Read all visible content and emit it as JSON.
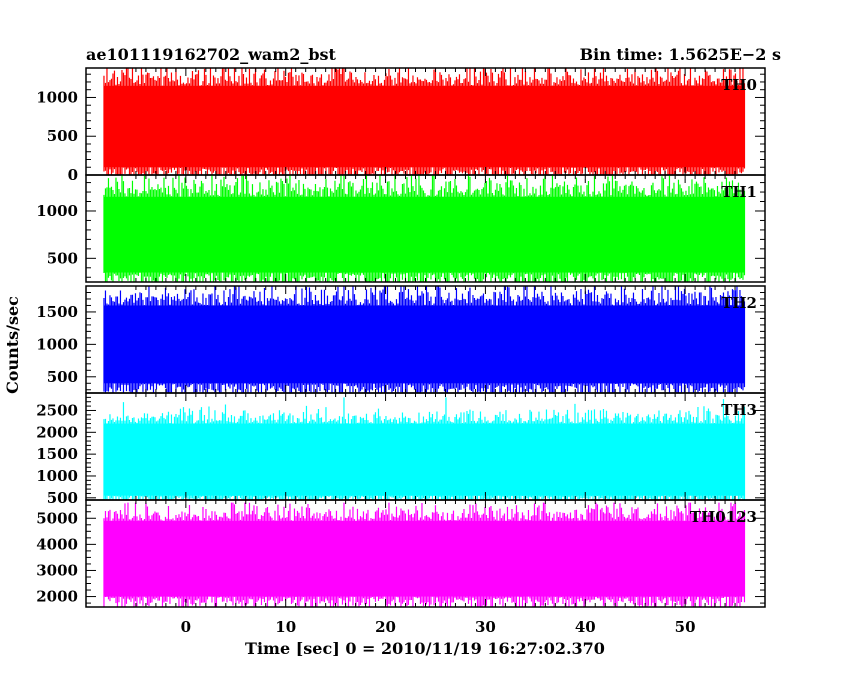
{
  "header": {
    "left_title": "ae101119162702_wam2_bst",
    "right_title": "Bin time: 1.5625E−2 s"
  },
  "axes": {
    "xlabel": "Time [sec] 0 = 2010/11/19 16:27:02.370",
    "ylabel": "Counts/sec"
  },
  "chart_data": {
    "type": "line",
    "title": "ae101119162702_wam2_bst",
    "subtitle": "Bin time: 1.5625E−2 s",
    "xlabel": "Time [sec] 0 = 2010/11/19 16:27:02.370",
    "ylabel": "Counts/sec",
    "xlim": [
      -10,
      58
    ],
    "x_ticks": [
      0,
      10,
      20,
      30,
      40,
      50
    ],
    "x_tick_labels": [
      "0",
      "10",
      "20",
      "30",
      "40",
      "50"
    ],
    "x_data_range": [
      -8.2,
      56.0
    ],
    "grid": false,
    "legend": "none",
    "panels": [
      {
        "name": "TH0",
        "color": "#ff0000",
        "ylim": [
          0,
          1380
        ],
        "y_ticks": [
          0,
          500,
          1000
        ],
        "y_tick_labels": [
          "0",
          "500",
          "1000"
        ],
        "mean": 600,
        "spread": 150,
        "typical_low": 100,
        "typical_high": 1150,
        "max": 1380
      },
      {
        "name": "TH1",
        "color": "#00ff00",
        "ylim": [
          250,
          1380
        ],
        "y_ticks": [
          500,
          1000
        ],
        "y_tick_labels": [
          "500",
          "1000"
        ],
        "mean": 700,
        "spread": 130,
        "typical_low": 350,
        "typical_high": 1150,
        "max": 1380
      },
      {
        "name": "TH2",
        "color": "#0000ff",
        "ylim": [
          250,
          1900
        ],
        "y_ticks": [
          500,
          1000,
          1500
        ],
        "y_tick_labels": [
          "500",
          "1000",
          "1500"
        ],
        "mean": 900,
        "spread": 170,
        "typical_low": 400,
        "typical_high": 1600,
        "max": 1900
      },
      {
        "name": "TH3",
        "color": "#00ffff",
        "ylim": [
          450,
          2900
        ],
        "y_ticks": [
          500,
          1000,
          1500,
          2000,
          2500
        ],
        "y_tick_labels": [
          "500",
          "1000",
          "1500",
          "2000",
          "2500"
        ],
        "mean": 1200,
        "spread": 200,
        "typical_low": 550,
        "typical_high": 2200,
        "max": 2800
      },
      {
        "name": "TH0123",
        "color": "#ff00ff",
        "ylim": [
          1600,
          5700
        ],
        "y_ticks": [
          2000,
          3000,
          4000,
          5000
        ],
        "y_tick_labels": [
          "2000",
          "3000",
          "4000",
          "5000"
        ],
        "mean": 3300,
        "spread": 350,
        "typical_low": 2000,
        "typical_high": 4900,
        "max": 5600
      }
    ]
  }
}
